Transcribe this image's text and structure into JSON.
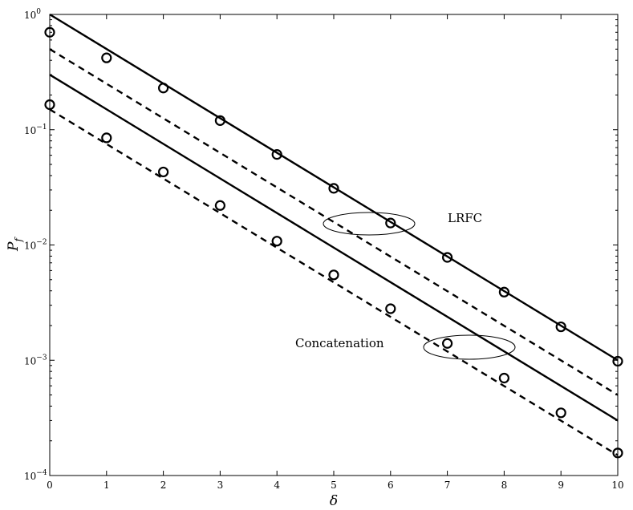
{
  "chart_data": {
    "type": "line",
    "xlabel": "δ",
    "ylabel": "P",
    "ylabel_sub": "f",
    "xlim": [
      0,
      10
    ],
    "ylim": [
      0.0001,
      1
    ],
    "yscale": "log",
    "grid": false,
    "x_ticks": [
      "0",
      "1",
      "2",
      "3",
      "4",
      "5",
      "6",
      "7",
      "8",
      "9",
      "10"
    ],
    "y_ticks": [
      {
        "base": "10",
        "exp": "0"
      },
      {
        "base": "10",
        "exp": "−1"
      },
      {
        "base": "10",
        "exp": "−2"
      },
      {
        "base": "10",
        "exp": "−3"
      },
      {
        "base": "10",
        "exp": "−4"
      }
    ],
    "annotations": [
      "LRFC",
      "Concatenation"
    ],
    "series": [
      {
        "group": "LRFC",
        "style": "solid",
        "x": [
          0,
          10
        ],
        "y": [
          1.0,
          0.001
        ]
      },
      {
        "group": "LRFC",
        "style": "dashed",
        "x": [
          0,
          10
        ],
        "y": [
          0.5,
          0.0005
        ]
      },
      {
        "group": "LRFC",
        "style": "markers",
        "x": [
          0,
          1,
          2,
          3,
          4,
          5,
          6,
          7,
          8,
          9,
          10
        ],
        "y": [
          0.7,
          0.42,
          0.23,
          0.12,
          0.061,
          0.031,
          0.0155,
          0.0078,
          0.0039,
          0.00195,
          0.00098
        ]
      },
      {
        "group": "Concatenation",
        "style": "solid",
        "x": [
          0,
          10
        ],
        "y": [
          0.3,
          0.0003
        ]
      },
      {
        "group": "Concatenation",
        "style": "dashed",
        "x": [
          0,
          10
        ],
        "y": [
          0.15,
          0.00015
        ]
      },
      {
        "group": "Concatenation",
        "style": "markers",
        "x": [
          0,
          1,
          2,
          3,
          4,
          5,
          6,
          7,
          8,
          9,
          10
        ],
        "y": [
          0.165,
          0.085,
          0.043,
          0.022,
          0.0108,
          0.0055,
          0.0028,
          0.0014,
          0.0007,
          0.00035,
          0.000157
        ]
      }
    ]
  }
}
